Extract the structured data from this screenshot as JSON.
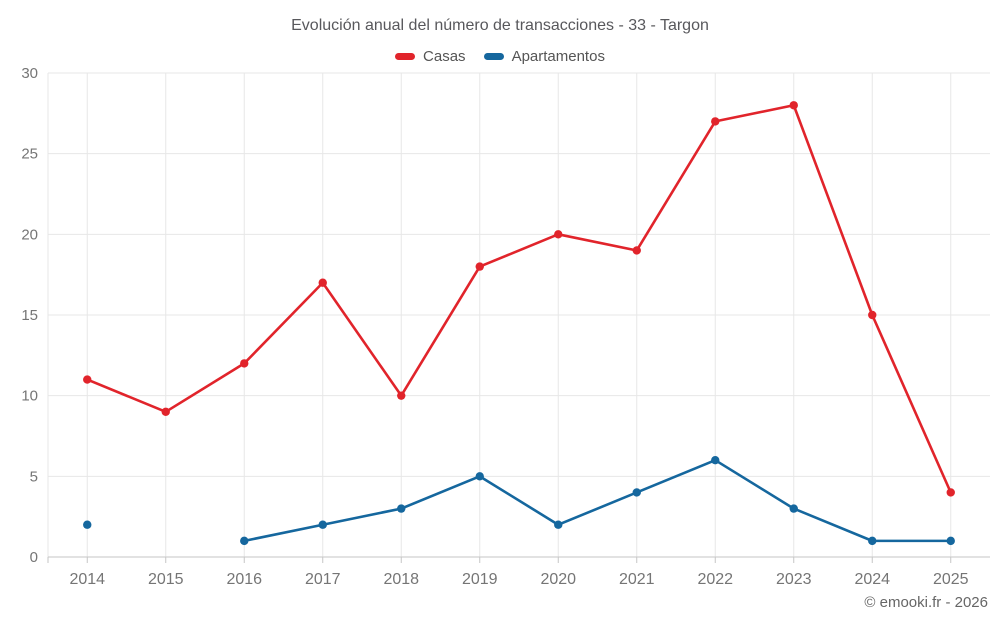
{
  "chart_data": {
    "type": "line",
    "title": "Evolución anual del número de transacciones - 33 - Targon",
    "categories": [
      "2014",
      "2015",
      "2016",
      "2017",
      "2018",
      "2019",
      "2020",
      "2021",
      "2022",
      "2023",
      "2024",
      "2025"
    ],
    "series": [
      {
        "name": "Casas",
        "color": "#e1242b",
        "values": [
          11,
          9,
          12,
          17,
          10,
          18,
          20,
          19,
          27,
          28,
          15,
          4
        ]
      },
      {
        "name": "Apartamentos",
        "color": "#15679e",
        "values": [
          2,
          null,
          1,
          2,
          3,
          5,
          2,
          4,
          6,
          3,
          1,
          1
        ]
      }
    ],
    "xlabel": "",
    "ylabel": "",
    "ylim": [
      0,
      30
    ],
    "yticks": [
      0,
      5,
      10,
      15,
      20,
      25,
      30
    ],
    "grid": true,
    "legend_position": "top",
    "colors": {
      "grid": "#e7e7e7",
      "axis": "#c6c6c6",
      "tick_label": "#757575",
      "title": "#58585c"
    }
  },
  "footer": {
    "copyright": "© emooki.fr - 2026"
  }
}
